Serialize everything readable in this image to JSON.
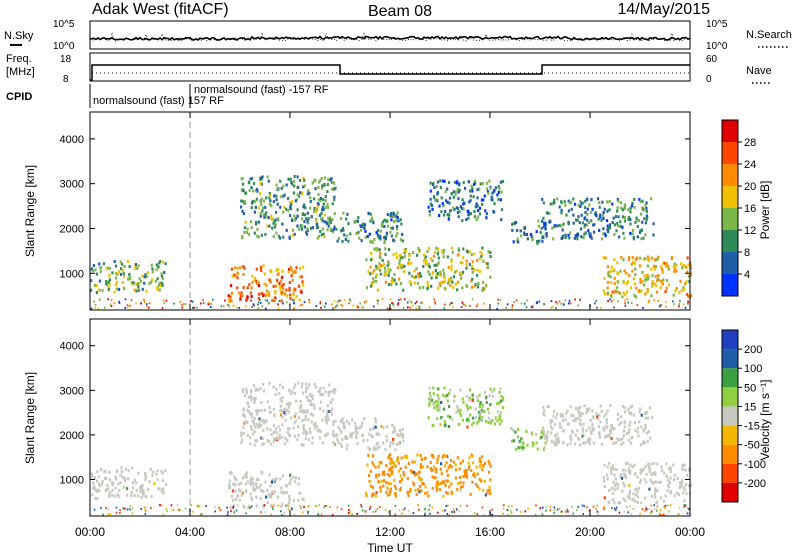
{
  "header": {
    "title": "Adak West (fitACF)",
    "beam": "Beam 08",
    "date": "14/May/2015"
  },
  "status_panel": {
    "nsky_label": "N.Sky",
    "nsky_ticks": [
      "10^5",
      "10^0"
    ],
    "nsearch_label": "N.Search",
    "nsearch_ticks": [
      "10^5",
      "10^0"
    ],
    "freq_label": "Freq.",
    "freq_unit": "[MHz]",
    "freq_ticks": [
      "18",
      "8"
    ],
    "nave_label": "Nave",
    "nave_ticks": [
      "60",
      "0"
    ],
    "cpid_label": "CPID",
    "cpid_entries": [
      "normalsound (fast) 157 RF",
      "normalsound (fast) -157 RF"
    ]
  },
  "colors": {
    "power": [
      "#0033ff",
      "#1f5fa8",
      "#2e8b57",
      "#7ab648",
      "#f0c000",
      "#ff8c00",
      "#ff4500",
      "#e00000"
    ],
    "velocity": [
      "#e00000",
      "#ff4500",
      "#ff8c00",
      "#f5b800",
      "#c8c8c0",
      "#90d040",
      "#3aa040",
      "#1f5fa8",
      "#2040c0"
    ]
  },
  "chart_data": [
    {
      "type": "heatmap",
      "panel": "power",
      "x": [
        "00:00",
        "04:00",
        "08:00",
        "12:00",
        "16:00",
        "20:00",
        "00:00"
      ],
      "xlim_hours": [
        0,
        24
      ],
      "ylabel": "Slant Range [km]",
      "yticks": [
        1000,
        2000,
        3000,
        4000
      ],
      "ylim_km": [
        180,
        4600
      ],
      "colorbar_label": "Power [dB]",
      "colorbar_ticks": [
        4,
        8,
        12,
        16,
        20,
        24,
        28
      ],
      "colorbar_range": [
        0,
        30
      ],
      "echo_regions": [
        {
          "t": [
            0.0,
            3.0
          ],
          "range_km": [
            600,
            1300
          ],
          "power_db": 12
        },
        {
          "t": [
            5.5,
            8.5
          ],
          "range_km": [
            400,
            1200
          ],
          "power_db": 22
        },
        {
          "t": [
            6.0,
            9.8
          ],
          "range_km": [
            1800,
            3200
          ],
          "power_db": 10
        },
        {
          "t": [
            9.8,
            12.5
          ],
          "range_km": [
            1700,
            2400
          ],
          "power_db": 9
        },
        {
          "t": [
            11.0,
            16.0
          ],
          "range_km": [
            650,
            1600
          ],
          "power_db": 14
        },
        {
          "t": [
            13.5,
            16.5
          ],
          "range_km": [
            2200,
            3100
          ],
          "power_db": 7
        },
        {
          "t": [
            16.8,
            18.2
          ],
          "range_km": [
            1700,
            2200
          ],
          "power_db": 9
        },
        {
          "t": [
            18.0,
            22.5
          ],
          "range_km": [
            1800,
            2700
          ],
          "power_db": 8
        },
        {
          "t": [
            20.5,
            24.0
          ],
          "range_km": [
            500,
            1400
          ],
          "power_db": 17
        }
      ]
    },
    {
      "type": "heatmap",
      "panel": "velocity",
      "x": [
        "00:00",
        "04:00",
        "08:00",
        "12:00",
        "16:00",
        "20:00",
        "00:00"
      ],
      "xlim_hours": [
        0,
        24
      ],
      "xlabel": "Time UT",
      "ylabel": "Slant Range [km]",
      "yticks": [
        1000,
        2000,
        3000,
        4000
      ],
      "ylim_km": [
        180,
        4600
      ],
      "colorbar_label": "Velocity [m s⁻¹]",
      "colorbar_ticks": [
        200,
        100,
        50,
        15,
        -15,
        -50,
        -100,
        -200
      ],
      "colorbar_range": [
        -250,
        250
      ],
      "echo_regions": [
        {
          "t": [
            0.0,
            3.0
          ],
          "range_km": [
            600,
            1300
          ],
          "velocity": 0
        },
        {
          "t": [
            5.5,
            8.5
          ],
          "range_km": [
            400,
            1200
          ],
          "velocity": 0
        },
        {
          "t": [
            6.0,
            9.8
          ],
          "range_km": [
            1800,
            3200
          ],
          "velocity": 0
        },
        {
          "t": [
            9.8,
            12.5
          ],
          "range_km": [
            1700,
            2400
          ],
          "velocity": 0
        },
        {
          "t": [
            11.0,
            16.0
          ],
          "range_km": [
            650,
            1600
          ],
          "velocity": -70
        },
        {
          "t": [
            13.5,
            16.5
          ],
          "range_km": [
            2200,
            3100
          ],
          "velocity": 30
        },
        {
          "t": [
            16.8,
            18.2
          ],
          "range_km": [
            1700,
            2200
          ],
          "velocity": 30
        },
        {
          "t": [
            18.0,
            22.5
          ],
          "range_km": [
            1800,
            2700
          ],
          "velocity": 0
        },
        {
          "t": [
            20.5,
            24.0
          ],
          "range_km": [
            500,
            1400
          ],
          "velocity": 0
        }
      ]
    }
  ]
}
